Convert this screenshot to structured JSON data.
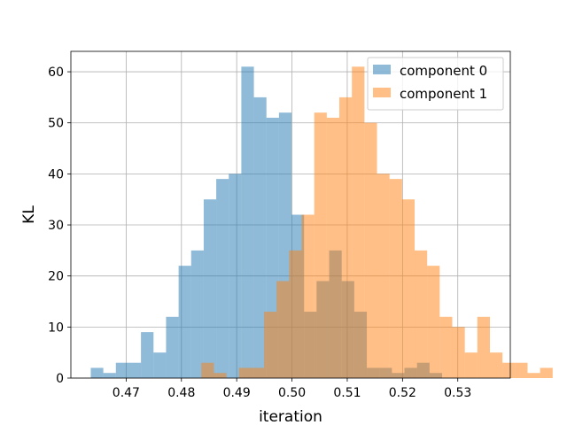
{
  "chart_data": {
    "type": "bar",
    "subtype": "histogram",
    "xlabel": "iteration",
    "ylabel": "KL",
    "xlim": [
      0.46,
      0.5395
    ],
    "ylim": [
      0,
      64
    ],
    "xticks": [
      "0.47",
      "0.48",
      "0.49",
      "0.50",
      "0.51",
      "0.52",
      "0.53"
    ],
    "yticks": [
      "0",
      "10",
      "20",
      "30",
      "40",
      "50",
      "60"
    ],
    "grid": true,
    "legend_position": "top-right",
    "series": [
      {
        "name": "component 0",
        "color": "#1f77b4",
        "bin_start": 0.4636,
        "bin_width": 0.00227,
        "counts": [
          2,
          1,
          3,
          3,
          9,
          5,
          12,
          22,
          25,
          35,
          39,
          40,
          61,
          55,
          51,
          52,
          32,
          13,
          19,
          25,
          19,
          13,
          2,
          2,
          1,
          2,
          3,
          1
        ]
      },
      {
        "name": "component 1",
        "color": "#ff7f0e",
        "bin_start": 0.4836,
        "bin_width": 0.00227,
        "counts": [
          3,
          1,
          0,
          2,
          2,
          13,
          19,
          25,
          32,
          52,
          51,
          55,
          61,
          50,
          40,
          39,
          35,
          25,
          22,
          12,
          10,
          5,
          12,
          5,
          3,
          3,
          1,
          2
        ]
      }
    ]
  }
}
